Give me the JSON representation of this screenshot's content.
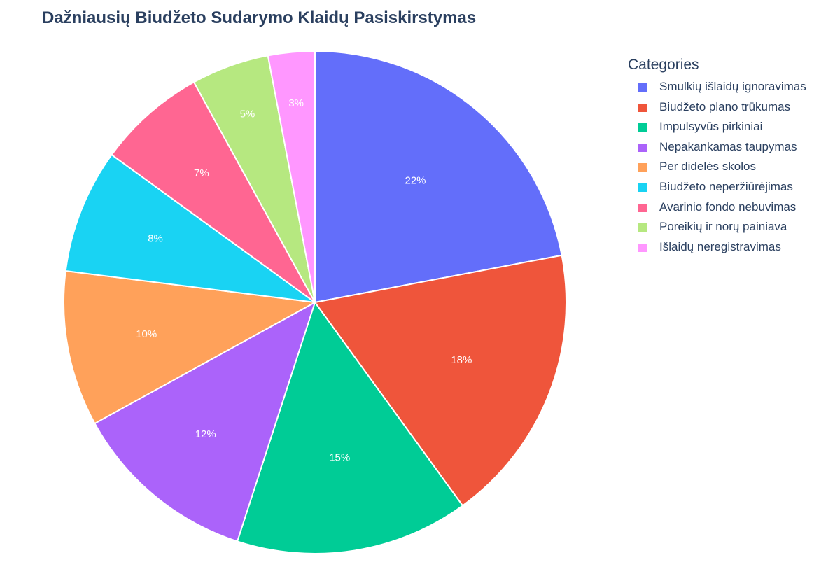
{
  "chart_data": {
    "type": "pie",
    "title": "Dažniausių Biudžeto Sudarymo Klaidų Pasiskirstymas",
    "legend_title": "Categories",
    "legend_position": "top-right",
    "slices": [
      {
        "label": "Smulkių išlaidų ignoravimas",
        "value": 22,
        "text": "22%",
        "color": "#636efa"
      },
      {
        "label": "Biudžeto plano trūkumas",
        "value": 18,
        "text": "18%",
        "color": "#ef553b"
      },
      {
        "label": "Impulsyvūs pirkiniai",
        "value": 15,
        "text": "15%",
        "color": "#00cc96"
      },
      {
        "label": "Nepakankamas taupymas",
        "value": 12,
        "text": "12%",
        "color": "#ab63fa"
      },
      {
        "label": "Per didelės skolos",
        "value": 10,
        "text": "10%",
        "color": "#ffa15a"
      },
      {
        "label": "Biudžeto neperžiūrėjimas",
        "value": 8,
        "text": "8%",
        "color": "#19d3f3"
      },
      {
        "label": "Avarinio fondo nebuvimas",
        "value": 7,
        "text": "7%",
        "color": "#ff6692"
      },
      {
        "label": "Poreikių ir norų painiava",
        "value": 5,
        "text": "5%",
        "color": "#b6e880"
      },
      {
        "label": "Išlaidų neregistravimas",
        "value": 3,
        "text": "3%",
        "color": "#ff97ff"
      }
    ]
  }
}
